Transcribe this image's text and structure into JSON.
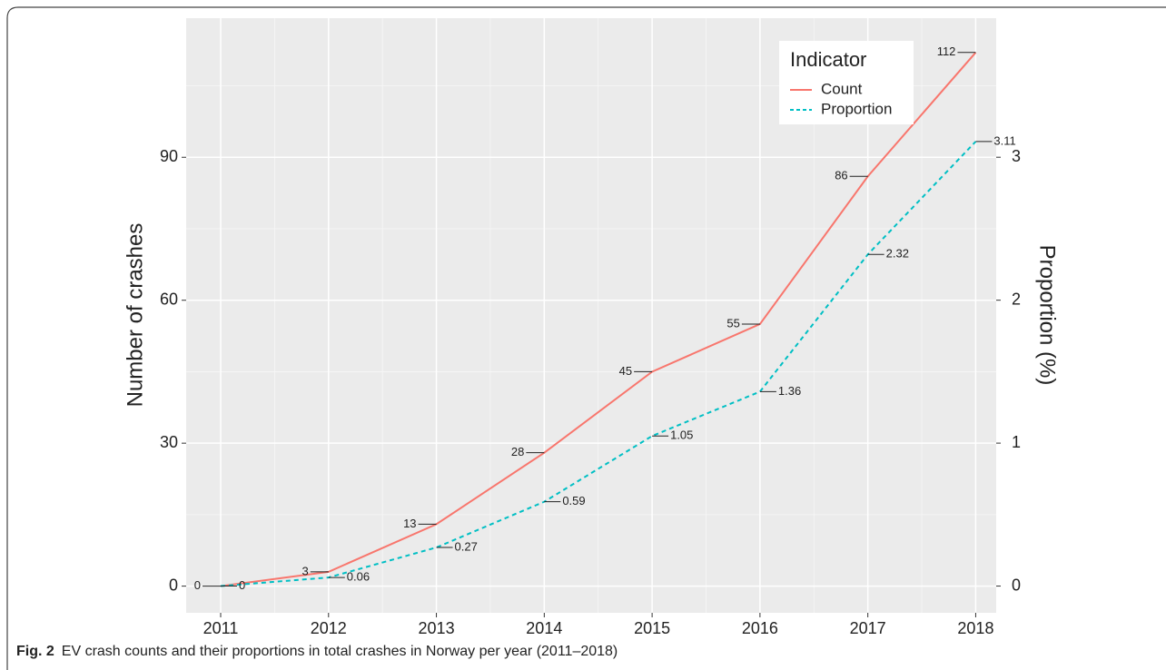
{
  "chart_data": {
    "type": "line",
    "caption_label": "Fig. 2",
    "caption": "EV crash counts and their proportions in total crashes in Norway per year (2011–2018)",
    "y_label": "Number of crashes",
    "y2_label": "Proportion (%)",
    "x": [
      2011,
      2012,
      2013,
      2014,
      2015,
      2016,
      2017,
      2018
    ],
    "xlim": [
      2010.68,
      2018.19
    ],
    "xticks": [
      2011,
      2012,
      2013,
      2014,
      2015,
      2016,
      2017,
      2018
    ],
    "ylim": [
      -5.6,
      119.2
    ],
    "yticks": [
      0,
      30,
      60,
      90
    ],
    "y2lim": [
      -0.187,
      3.973
    ],
    "y2ticks": [
      0,
      1,
      2,
      3
    ],
    "grid": true,
    "legend_title": "Indicator",
    "legend_position": "top-right",
    "series": [
      {
        "name": "Count",
        "color": "#f8766d",
        "linestyle": "solid",
        "axis": "y",
        "values": [
          0,
          3,
          13,
          28,
          45,
          55,
          86,
          112
        ]
      },
      {
        "name": "Proportion",
        "color": "#00bfc4",
        "linestyle": "dashed",
        "axis": "y2",
        "values": [
          0,
          0.06,
          0.27,
          0.59,
          1.05,
          1.36,
          2.32,
          3.11
        ]
      }
    ]
  }
}
